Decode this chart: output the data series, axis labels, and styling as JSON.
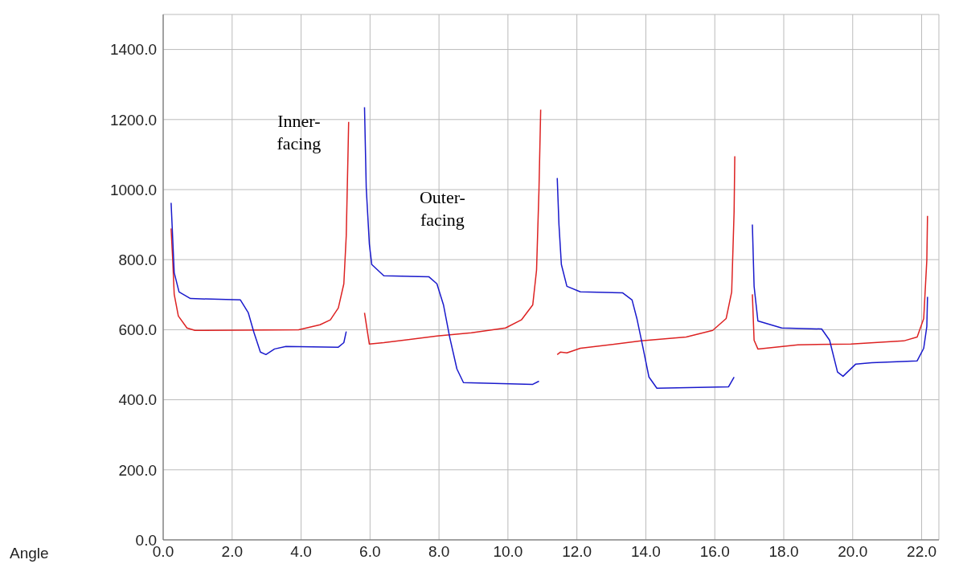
{
  "chart_data": {
    "type": "line",
    "xlabel": "Angle",
    "xlim": [
      0,
      22.5
    ],
    "ylim": [
      0,
      1500
    ],
    "xticks": [
      {
        "value": 0,
        "label": "0.0"
      },
      {
        "value": 2,
        "label": "2.0"
      },
      {
        "value": 4,
        "label": "4.0"
      },
      {
        "value": 6,
        "label": "6.0"
      },
      {
        "value": 8,
        "label": "8.0"
      },
      {
        "value": 10,
        "label": "10.0"
      },
      {
        "value": 12,
        "label": "12.0"
      },
      {
        "value": 14,
        "label": "14.0"
      },
      {
        "value": 16,
        "label": "16.0"
      },
      {
        "value": 18,
        "label": "18.0"
      },
      {
        "value": 20,
        "label": "20.0"
      },
      {
        "value": 22,
        "label": "22.0"
      }
    ],
    "yticks": [
      {
        "value": 0,
        "label": "0.0"
      },
      {
        "value": 200,
        "label": "200.0"
      },
      {
        "value": 400,
        "label": "400.0"
      },
      {
        "value": 600,
        "label": "600.0"
      },
      {
        "value": 800,
        "label": "800.0"
      },
      {
        "value": 1000,
        "label": "1000.0"
      },
      {
        "value": 1200,
        "label": "1200.0"
      },
      {
        "value": 1400,
        "label": "1400.0"
      }
    ],
    "grid": true,
    "marker": "none",
    "line_style": "solid",
    "annotations": [
      "Inner-facing",
      "Outer-facing"
    ],
    "series": [
      {
        "color": "#dd2222",
        "x": [
          0.23,
          0.28,
          0.32,
          0.44,
          0.69,
          0.92,
          3.93,
          4.55,
          4.85,
          5.08,
          5.24,
          5.31,
          5.36,
          5.38,
          5.6,
          5.84,
          5.98,
          6.4,
          7.94,
          8.94,
          9.93,
          10.39,
          10.72,
          10.83,
          10.9,
          10.95,
          11.2,
          11.43,
          11.52,
          11.71,
          12.1,
          13.86,
          15.17,
          15.94,
          16.33,
          16.49,
          16.56,
          16.58,
          16.8,
          17.09,
          17.14,
          17.25,
          18.41,
          19.95,
          21.48,
          21.87,
          22.06,
          22.15,
          22.17
        ],
        "values": [
          889,
          792,
          701,
          639,
          605,
          598,
          600,
          614,
          628,
          662,
          731,
          868,
          1097,
          1193,
          null,
          648,
          559,
          563,
          582,
          591,
          605,
          628,
          671,
          770,
          999,
          1228,
          null,
          529,
          536,
          534,
          547,
          568,
          579,
          598,
          632,
          708,
          937,
          1095,
          null,
          701,
          570,
          545,
          557,
          559,
          568,
          579,
          632,
          799,
          925
        ]
      },
      {
        "color": "#1a1acc",
        "x": [
          0.23,
          0.32,
          0.46,
          0.79,
          2.24,
          2.47,
          2.63,
          2.82,
          2.98,
          3.23,
          3.56,
          5.08,
          5.24,
          5.31,
          5.6,
          5.84,
          5.89,
          5.98,
          6.05,
          6.4,
          7.71,
          7.94,
          8.13,
          8.31,
          8.52,
          8.71,
          10.72,
          10.9,
          11.2,
          11.43,
          11.48,
          11.55,
          11.71,
          12.1,
          13.33,
          13.6,
          13.74,
          13.9,
          14.09,
          14.32,
          16.4,
          16.56,
          16.8,
          17.09,
          17.14,
          17.25,
          17.94,
          19.1,
          19.33,
          19.56,
          19.72,
          20.09,
          20.55,
          21.87,
          22.06,
          22.15,
          22.17
        ],
        "values": [
          962,
          763,
          708,
          689,
          685,
          648,
          593,
          536,
          529,
          545,
          552,
          550,
          563,
          595,
          null,
          1235,
          1005,
          845,
          786,
          754,
          751,
          731,
          671,
          579,
          488,
          449,
          444,
          453,
          null,
          1033,
          900,
          786,
          724,
          708,
          705,
          685,
          632,
          557,
          465,
          433,
          437,
          465,
          null,
          900,
          724,
          625,
          605,
          602,
          570,
          479,
          467,
          502,
          506,
          511,
          547,
          609,
          694
        ]
      }
    ]
  }
}
